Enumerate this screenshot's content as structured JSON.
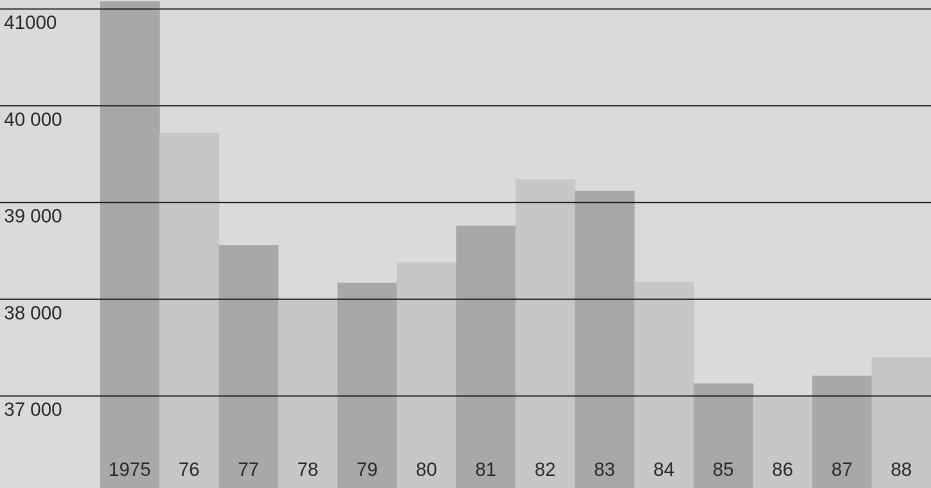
{
  "chart_data": {
    "type": "bar",
    "title": "",
    "xlabel": "",
    "ylabel": "",
    "categories": [
      "1975",
      "76",
      "77",
      "78",
      "79",
      "80",
      "81",
      "82",
      "83",
      "84",
      "85",
      "86",
      "87",
      "88"
    ],
    "values": [
      41080,
      39720,
      38560,
      38000,
      38170,
      38380,
      38760,
      39240,
      39120,
      38180,
      37130,
      37000,
      37210,
      37400
    ],
    "ylim": [
      36600,
      41200
    ],
    "yticks": [
      {
        "value": 41000,
        "label": "41000"
      },
      {
        "value": 40000,
        "label": "40 000"
      },
      {
        "value": 39000,
        "label": "39 000"
      },
      {
        "value": 38000,
        "label": "38 000"
      },
      {
        "value": 37000,
        "label": "37 000"
      }
    ],
    "grid": true,
    "legend": "none",
    "colors": {
      "background": "#dadada",
      "bar_dark": "#a8a8a8",
      "bar_light": "#c7c7c7",
      "grid": "#1e1e1e",
      "text": "#2a2a2a"
    }
  }
}
